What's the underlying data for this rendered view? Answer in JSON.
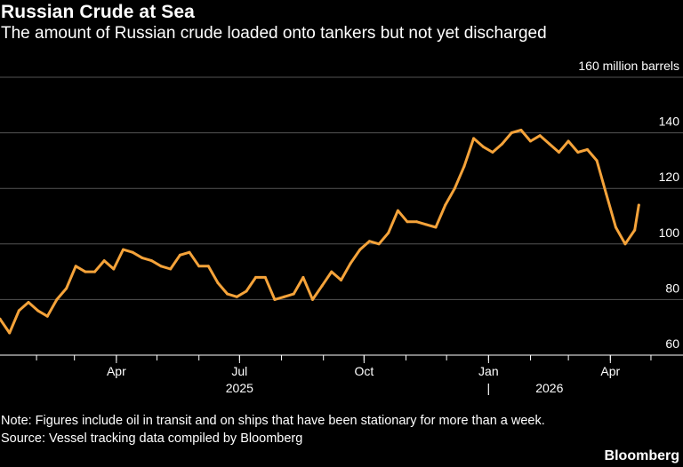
{
  "header": {
    "title": "Russian Crude at Sea",
    "subtitle": "The amount of Russian crude loaded onto tankers but not yet discharged"
  },
  "footer": {
    "note": "Note: Figures include oil in transit and on ships that have been stationary for more than a week.",
    "source": "Source: Vessel tracking data compiled by Bloomberg",
    "brand": "Bloomberg"
  },
  "colors": {
    "line": "#f5a33a",
    "grid": "#555555",
    "background": "#000000",
    "text": "#ffffff"
  },
  "chart_data": {
    "type": "line",
    "title": "Russian Crude at Sea",
    "subtitle": "The amount of Russian crude loaded onto tankers but not yet discharged",
    "ylabel": "160 million barrels",
    "y_unit_label": "million barrels",
    "ylim": [
      60,
      160
    ],
    "yticks": [
      60,
      80,
      100,
      120,
      140,
      160
    ],
    "ytick_labels": [
      "60",
      "80",
      "100",
      "120",
      "140",
      "160 million barrels"
    ],
    "xlim": [
      "2025-01-05",
      "2026-05-03"
    ],
    "xticks": [
      {
        "date": "2025-04-01",
        "label": "Apr"
      },
      {
        "date": "2025-07-01",
        "label": "Jul"
      },
      {
        "date": "2025-10-01",
        "label": "Oct"
      },
      {
        "date": "2026-01-01",
        "label": "Jan"
      },
      {
        "date": "2026-04-01",
        "label": "Apr"
      }
    ],
    "year_labels": [
      {
        "label": "2025",
        "date": "2025-07-01"
      },
      {
        "label": "2026",
        "date": "2026-02-15"
      }
    ],
    "year_divider_label": "|",
    "grid": true,
    "series": [
      {
        "x": [
          "2025-01-05",
          "2025-01-12",
          "2025-01-19",
          "2025-01-26",
          "2025-02-02",
          "2025-02-09",
          "2025-02-16",
          "2025-02-23",
          "2025-03-02",
          "2025-03-09",
          "2025-03-16",
          "2025-03-23",
          "2025-03-30",
          "2025-04-06",
          "2025-04-13",
          "2025-04-20",
          "2025-04-27",
          "2025-05-04",
          "2025-05-11",
          "2025-05-18",
          "2025-05-25",
          "2025-06-01",
          "2025-06-08",
          "2025-06-15",
          "2025-06-22",
          "2025-06-29",
          "2025-07-06",
          "2025-07-13",
          "2025-07-20",
          "2025-07-27",
          "2025-08-03",
          "2025-08-10",
          "2025-08-17",
          "2025-08-24",
          "2025-08-31",
          "2025-09-07",
          "2025-09-14",
          "2025-09-21",
          "2025-09-28",
          "2025-10-05",
          "2025-10-12",
          "2025-10-19",
          "2025-10-26",
          "2025-11-02",
          "2025-11-09",
          "2025-11-16",
          "2025-11-23",
          "2025-11-30",
          "2025-12-07",
          "2025-12-14",
          "2025-12-21",
          "2025-12-28",
          "2026-01-04",
          "2026-01-11",
          "2026-01-18",
          "2026-01-25",
          "2026-02-01",
          "2026-02-08",
          "2026-02-15",
          "2026-02-22",
          "2026-03-01",
          "2026-03-08",
          "2026-03-15",
          "2026-03-22",
          "2026-03-29",
          "2026-04-05",
          "2026-04-12",
          "2026-04-19",
          "2026-04-22"
        ],
        "values": [
          73,
          68,
          76,
          79,
          76,
          74,
          80,
          84,
          92,
          90,
          90,
          94,
          91,
          98,
          97,
          95,
          94,
          92,
          91,
          96,
          97,
          92,
          92,
          86,
          82,
          81,
          83,
          88,
          88,
          80,
          81,
          82,
          88,
          80,
          85,
          90,
          87,
          93,
          98,
          101,
          100,
          104,
          112,
          108,
          108,
          107,
          106,
          114,
          120,
          128,
          138,
          135,
          133,
          136,
          140,
          141,
          137,
          139,
          136,
          133,
          137,
          133,
          134,
          130,
          118,
          106,
          100,
          105,
          114
        ]
      }
    ]
  }
}
